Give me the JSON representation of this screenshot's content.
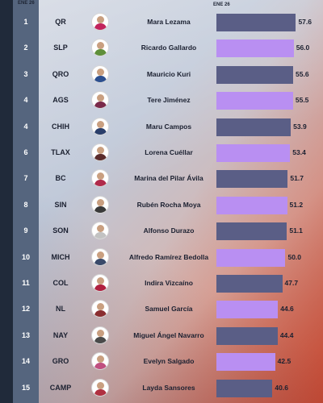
{
  "period_label": "ENE 26",
  "colors": {
    "bar_dark": "#5a5e86",
    "bar_light": "#b98ff2"
  },
  "chart_data": {
    "type": "bar",
    "orientation": "horizontal",
    "period": "ENE 26",
    "xlim": [
      0,
      60
    ],
    "rows": [
      {
        "rank": "1",
        "state": "QR",
        "name": "Mara Lezama",
        "value": 57.6,
        "value_label": "57.6"
      },
      {
        "rank": "2",
        "state": "SLP",
        "name": "Ricardo Gallardo",
        "value": 56.0,
        "value_label": "56.0"
      },
      {
        "rank": "3",
        "state": "QRO",
        "name": "Mauricio Kuri",
        "value": 55.6,
        "value_label": "55.6"
      },
      {
        "rank": "4",
        "state": "AGS",
        "name": "Tere Jiménez",
        "value": 55.5,
        "value_label": "55.5"
      },
      {
        "rank": "4",
        "state": "CHIH",
        "name": "Maru Campos",
        "value": 53.9,
        "value_label": "53.9"
      },
      {
        "rank": "6",
        "state": "TLAX",
        "name": "Lorena Cuéllar",
        "value": 53.4,
        "value_label": "53.4"
      },
      {
        "rank": "7",
        "state": "BC",
        "name": "Marina del Pilar Ávila",
        "value": 51.7,
        "value_label": "51.7"
      },
      {
        "rank": "8",
        "state": "SIN",
        "name": "Rubén Rocha Moya",
        "value": 51.2,
        "value_label": "51.2"
      },
      {
        "rank": "9",
        "state": "SON",
        "name": "Alfonso Durazo",
        "value": 51.1,
        "value_label": "51.1"
      },
      {
        "rank": "10",
        "state": "MICH",
        "name": "Alfredo Ramírez Bedolla",
        "value": 50.0,
        "value_label": "50.0"
      },
      {
        "rank": "11",
        "state": "COL",
        "name": "Indira Vizcaíno",
        "value": 47.7,
        "value_label": "47.7"
      },
      {
        "rank": "12",
        "state": "NL",
        "name": "Samuel García",
        "value": 44.6,
        "value_label": "44.6"
      },
      {
        "rank": "13",
        "state": "NAY",
        "name": "Miguel Ángel Navarro",
        "value": 44.4,
        "value_label": "44.4"
      },
      {
        "rank": "14",
        "state": "GRO",
        "name": "Evelyn Salgado",
        "value": 42.5,
        "value_label": "42.5"
      },
      {
        "rank": "15",
        "state": "CAMP",
        "name": "Layda Sansores",
        "value": 40.6,
        "value_label": "40.6"
      }
    ]
  }
}
